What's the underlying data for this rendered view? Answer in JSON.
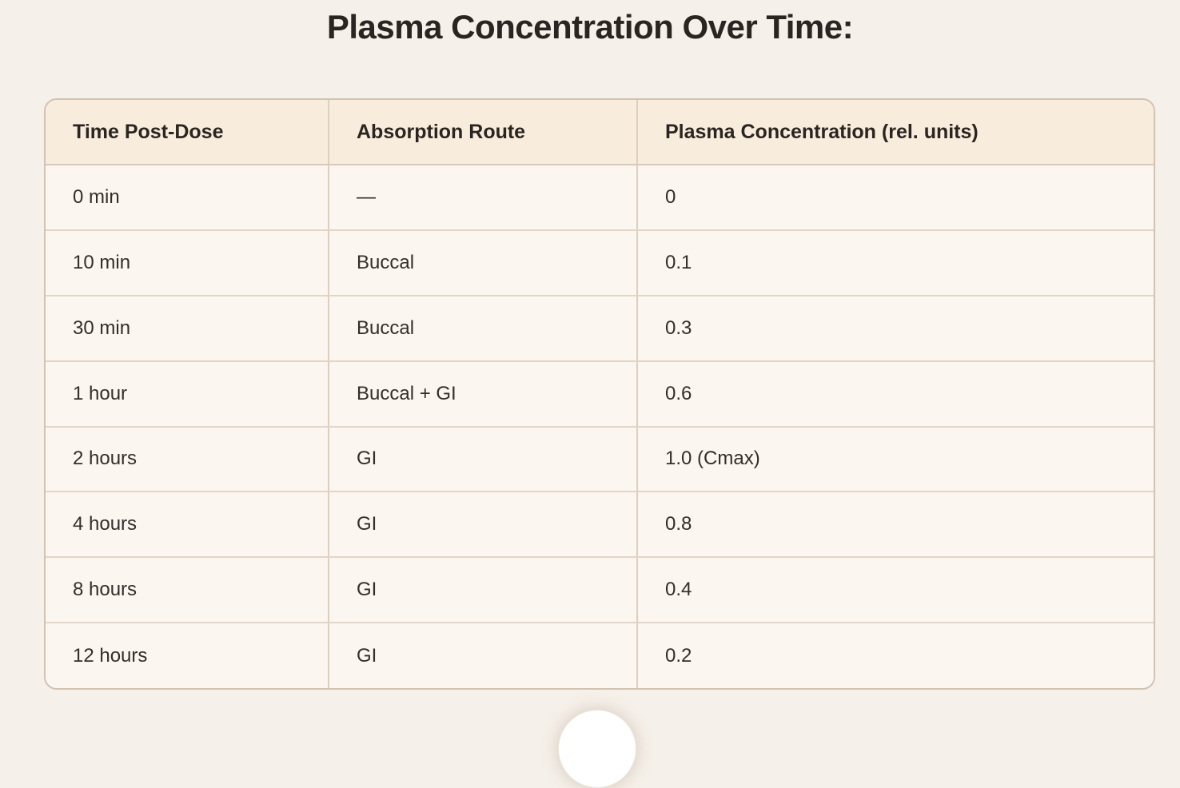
{
  "page": {
    "title": "Plasma Concentration Over Time:"
  },
  "table": {
    "columns": [
      "Time Post-Dose",
      "Absorption Route",
      "Plasma Concentration (rel. units)"
    ],
    "rows": [
      [
        "0 min",
        "—",
        "0"
      ],
      [
        "10 min",
        "Buccal",
        "0.1"
      ],
      [
        "30 min",
        "Buccal",
        "0.3"
      ],
      [
        "1 hour",
        "Buccal + GI",
        "0.6"
      ],
      [
        "2 hours",
        "GI",
        "1.0 (Cmax)"
      ],
      [
        "4 hours",
        "GI",
        "0.8"
      ],
      [
        "8 hours",
        "GI",
        "0.4"
      ],
      [
        "12 hours",
        "GI",
        "0.2"
      ]
    ]
  },
  "chart_data": {
    "type": "table",
    "title": "Plasma Concentration Over Time:",
    "columns": [
      "Time Post-Dose",
      "Absorption Route",
      "Plasma Concentration (rel. units)"
    ],
    "x_labels": [
      "0 min",
      "10 min",
      "30 min",
      "1 hour",
      "2 hours",
      "4 hours",
      "8 hours",
      "12 hours"
    ],
    "absorption_route": [
      "—",
      "Buccal",
      "Buccal",
      "Buccal + GI",
      "GI",
      "GI",
      "GI",
      "GI"
    ],
    "plasma_concentration": [
      0,
      0.1,
      0.3,
      0.6,
      1.0,
      0.8,
      0.4,
      0.2
    ],
    "cmax_label": "1.0 (Cmax)",
    "cmax_at": "2 hours"
  },
  "colors": {
    "page_background": "#f5f0e9",
    "header_background": "#f8ecdc",
    "row_background": "#fbf6f0",
    "outer_border": "#d2c2b1",
    "inner_border": "#ddcfc0",
    "title_text": "#2a2520",
    "cell_text": "#322e29",
    "fab_background": "#ffffff"
  }
}
